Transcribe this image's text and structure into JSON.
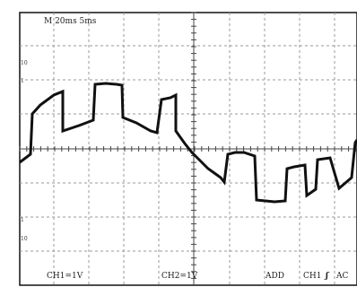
{
  "readouts": {
    "timebase": "M 20ms 5ms",
    "ch1_scale": "CH1=1V",
    "ch2_scale": "CH2=1V",
    "mode": "ADD",
    "trigger_source": "CH1",
    "trigger_slope": "ʃ",
    "trigger_coupling": "AC"
  },
  "markers": {
    "top_a": "10",
    "top_b": "1",
    "bottom_a": "1",
    "bottom_b": "10"
  },
  "colors": {
    "trace": "#111111",
    "grid": "#888888",
    "background": "#ffffff"
  }
}
